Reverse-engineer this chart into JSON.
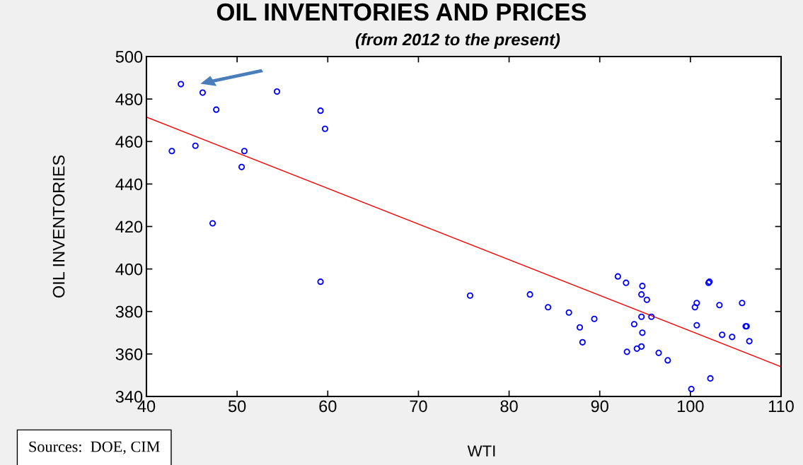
{
  "chart_data": {
    "type": "scatter",
    "title": "OIL INVENTORIES AND PRICES",
    "subtitle": "(from 2012 to the present)",
    "xlabel": "WTI",
    "ylabel": "OIL INVENTORIES",
    "annotations": [
      "Sources:  DOE, CIM"
    ],
    "xlim": [
      40,
      110
    ],
    "xticks": [
      40,
      50,
      60,
      70,
      80,
      90,
      100,
      110
    ],
    "ylim": [
      340,
      500
    ],
    "yticks": [
      340,
      360,
      380,
      400,
      420,
      440,
      460,
      480,
      500
    ],
    "grid": false,
    "series": [
      {
        "marker": "circle",
        "color": "#0000ff",
        "x": [
          43.8,
          46.2,
          47.7,
          42.8,
          45.4,
          47.3,
          50.5,
          50.8,
          54.4,
          59.2,
          59.7,
          59.2,
          75.7,
          82.3,
          84.3,
          86.6,
          87.8,
          88.1,
          89.4,
          92.0,
          92.9,
          93.0,
          93.8,
          94.1,
          94.6,
          94.7,
          94.6,
          94.7,
          94.6,
          95.2,
          95.7,
          96.5,
          97.5,
          100.1,
          100.5,
          100.7,
          100.7,
          102.0,
          102.1,
          102.2,
          103.2,
          103.5,
          104.6,
          105.7,
          106.1,
          106.2,
          106.5
        ],
        "values": [
          487,
          483,
          475,
          455.5,
          458,
          421.5,
          448,
          455.5,
          483.5,
          474.5,
          466,
          394,
          387.5,
          388,
          382,
          379.5,
          372.5,
          365.5,
          376.5,
          396.5,
          393.5,
          361,
          374,
          362.5,
          388,
          392,
          377.5,
          370,
          363.5,
          385.5,
          377.5,
          360.5,
          357,
          343.5,
          382,
          384,
          373.5,
          393.5,
          394,
          348.5,
          383,
          369,
          368,
          384,
          373,
          373,
          366
        ]
      },
      {
        "type": "line",
        "color": "#ff0000",
        "x": [
          40,
          110
        ],
        "values": [
          471.5,
          354
        ]
      }
    ]
  }
}
